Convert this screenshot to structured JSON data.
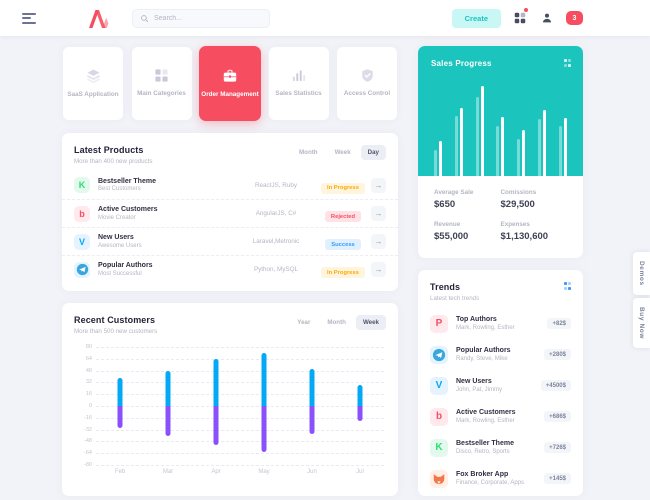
{
  "header": {
    "search_placeholder": "Search...",
    "create_label": "Create",
    "notification_count": "3"
  },
  "quick_nav": {
    "items": [
      {
        "label": "SaaS Application",
        "icon": "layers-icon",
        "active": false
      },
      {
        "label": "Main Categories",
        "icon": "grid-icon",
        "active": false
      },
      {
        "label": "Order Management",
        "icon": "briefcase-icon",
        "active": true
      },
      {
        "label": "Sales Statistics",
        "icon": "bar-chart-icon",
        "active": false
      },
      {
        "label": "Access Control",
        "icon": "shield-check-icon",
        "active": false
      }
    ]
  },
  "latest_products": {
    "title": "Latest Products",
    "subtitle": "More than 400 new products",
    "tabs": [
      "Month",
      "Week",
      "Day"
    ],
    "active_tab": "Day",
    "rows": [
      {
        "icon": "kickstarter-icon",
        "title": "Bestseller Theme",
        "subtitle": "Best Customers",
        "tech": "ReactJS, Ruby",
        "status": "In Progress",
        "status_type": "warning"
      },
      {
        "icon": "beats-icon",
        "title": "Active Customers",
        "subtitle": "Movie Creator",
        "tech": "AngularJS, C#",
        "status": "Rejected",
        "status_type": "danger"
      },
      {
        "icon": "vimeo-icon",
        "title": "New Users",
        "subtitle": "Awesome Users",
        "tech": "Laravel,Metronic",
        "status": "Success",
        "status_type": "primary"
      },
      {
        "icon": "telegram-icon",
        "title": "Popular Authors",
        "subtitle": "Most Successful",
        "tech": "Python, MySQL",
        "status": "In Progress",
        "status_type": "warning"
      }
    ]
  },
  "recent_customers": {
    "title": "Recent Customers",
    "subtitle": "More than 500 new customers",
    "tabs": [
      "Year",
      "Month",
      "Week"
    ],
    "active_tab": "Week"
  },
  "sales_progress": {
    "title": "Sales Progress",
    "stats": [
      {
        "label": "Average Sale",
        "value": "$650"
      },
      {
        "label": "Comissions",
        "value": "$29,500"
      },
      {
        "label": "Revenue",
        "value": "$55,000"
      },
      {
        "label": "Expenses",
        "value": "$1,130,600"
      }
    ]
  },
  "trends": {
    "title": "Trends",
    "subtitle": "Latest tech trends",
    "rows": [
      {
        "icon": "producthunt-icon",
        "title": "Top Authors",
        "subtitle": "Mark, Rowling, Esther",
        "value": "+82$"
      },
      {
        "icon": "telegram-icon",
        "title": "Popular Authors",
        "subtitle": "Randy, Steve, Mike",
        "value": "+280$"
      },
      {
        "icon": "vimeo-icon",
        "title": "New Users",
        "subtitle": "John, Pat, Jimmy",
        "value": "+4500$"
      },
      {
        "icon": "beats-icon",
        "title": "Active Customers",
        "subtitle": "Mark, Rowling, Esther",
        "value": "+686$"
      },
      {
        "icon": "kickstarter-icon",
        "title": "Bestseller Theme",
        "subtitle": "Disco, Retro, Sports",
        "value": "+726$"
      },
      {
        "icon": "fox-icon",
        "title": "Fox Broker App",
        "subtitle": "Finance, Corporate, Apps",
        "value": "+145$"
      }
    ]
  },
  "side_tabs": {
    "demos": "Demos",
    "buy_now": "Buy Now"
  },
  "colors": {
    "accent_pink": "#F64E60",
    "teal": "#1BC5BD",
    "teal_light": "#C9F7F5",
    "warning": "#FFA800",
    "primary_blue": "#3699FF",
    "chart_blue": "#04A9F5",
    "chart_purple": "#8950FC",
    "muted_text": "#B5B5C3"
  },
  "chart_data": [
    {
      "id": "sales_progress",
      "type": "bar",
      "title": "Sales Progress",
      "categories": [
        "1",
        "2",
        "3",
        "4",
        "5",
        "6",
        "7"
      ],
      "series": [
        {
          "name": "previous",
          "values": [
            28,
            65,
            86,
            54,
            40,
            62,
            54
          ]
        },
        {
          "name": "current",
          "values": [
            38,
            74,
            98,
            64,
            50,
            72,
            63
          ]
        }
      ],
      "ylim": [
        0,
        100
      ],
      "grid": false,
      "legend": "none",
      "axes": "hidden"
    },
    {
      "id": "recent_customers",
      "type": "bar",
      "title": "Recent Customers",
      "categories": [
        "Feb",
        "Mar",
        "Apr",
        "May",
        "Jun",
        "Jul"
      ],
      "series": [
        {
          "name": "gained",
          "color": "#04A9F5",
          "values": [
            38,
            48,
            64,
            72,
            50,
            28
          ]
        },
        {
          "name": "lost",
          "color": "#8950FC",
          "values": [
            -30,
            -40,
            -53,
            -62,
            -38,
            -20
          ]
        }
      ],
      "ylim": [
        -80,
        80
      ],
      "yticks": [
        80,
        64,
        48,
        32,
        16,
        0,
        -16,
        -32,
        -48,
        -64,
        -80
      ],
      "grid": true,
      "legend": "none"
    }
  ]
}
